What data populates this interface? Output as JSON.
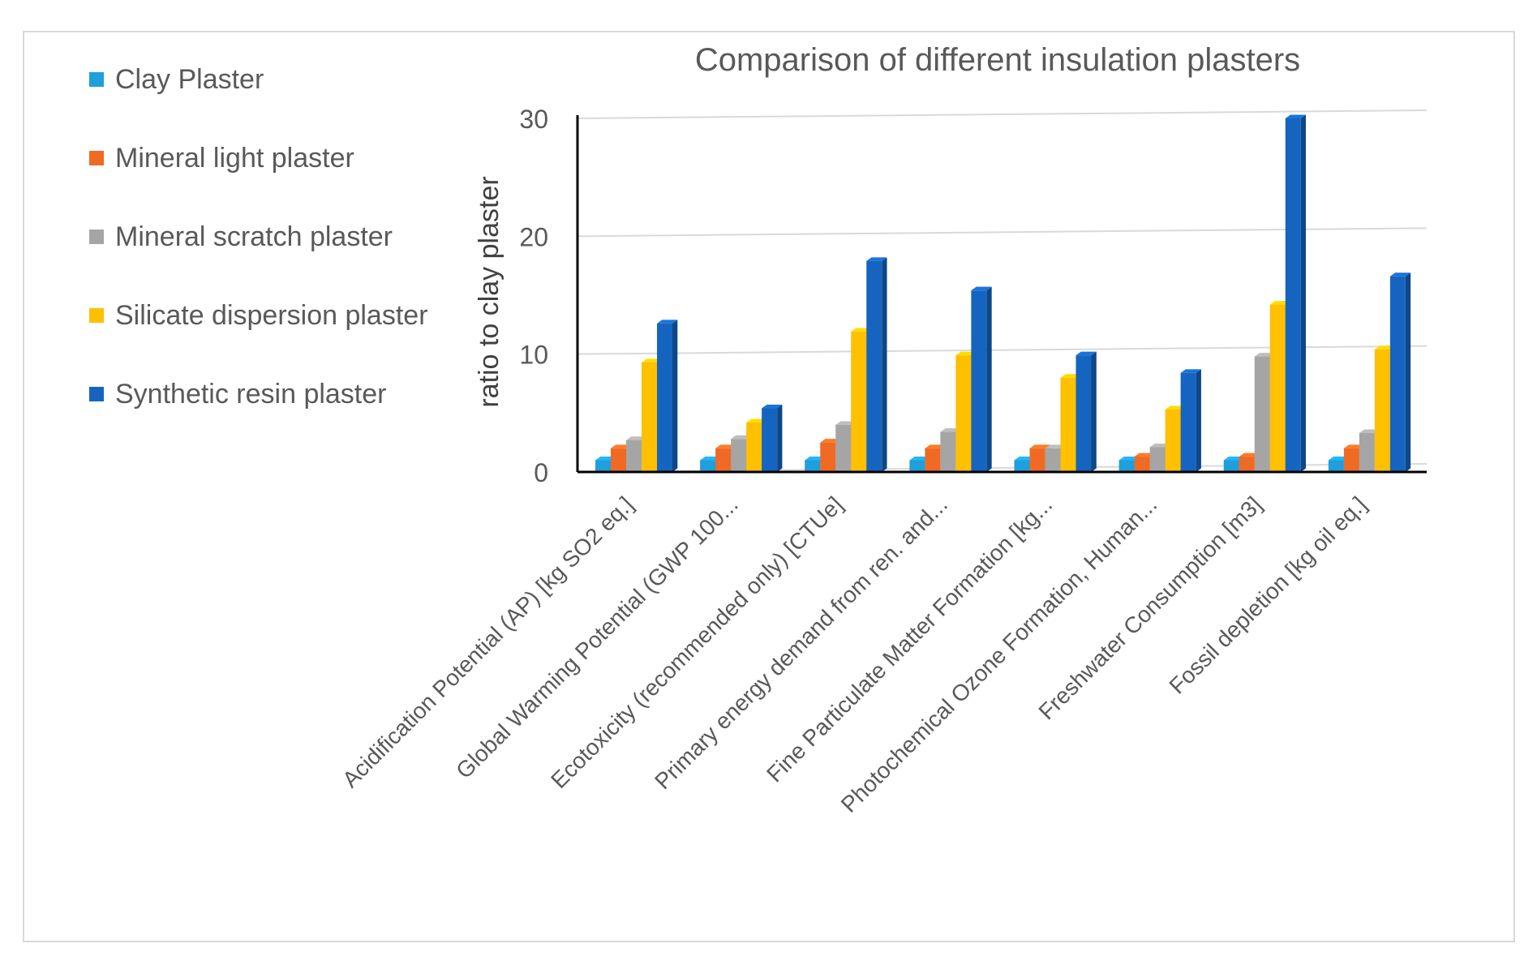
{
  "chart_data": {
    "type": "bar",
    "title": "Comparison of different insulation plasters",
    "xlabel": "",
    "ylabel": "ratio to clay plaster",
    "ylim": [
      0,
      30
    ],
    "yticks": [
      0,
      10,
      20,
      30
    ],
    "grid": true,
    "legend_position": "left",
    "categories": [
      "Acidification Potential (AP) [kg SO2 eq.]",
      "Global Warming Potential (GWP 100...",
      "Ecotoxicity (recommended only) [CTUe]",
      "Primary energy demand from ren. and...",
      "Fine Particulate Matter Formation [kg...",
      "Photochemical Ozone Formation, Human...",
      "Freshwater Consumption [m3]",
      "Fossil depletion [kg oil eq.]"
    ],
    "series": [
      {
        "name": "Clay Plaster",
        "color": "#1f9fdc",
        "values": [
          1,
          1,
          1,
          1,
          1,
          1,
          1,
          1
        ]
      },
      {
        "name": "Mineral light plaster",
        "color": "#f06a23",
        "values": [
          2,
          2,
          2.5,
          2,
          2,
          1.3,
          1.3,
          2
        ]
      },
      {
        "name": "Mineral scratch plaster",
        "color": "#a5a5a5",
        "values": [
          2.7,
          2.8,
          4,
          3.4,
          2,
          2.1,
          9.8,
          3.3
        ]
      },
      {
        "name": "Silicate dispersion plaster",
        "color": "#ffc000",
        "values": [
          9.3,
          4.2,
          11.9,
          9.9,
          8,
          5.3,
          14.2,
          10.4
        ]
      },
      {
        "name": "Synthetic resin plaster",
        "color": "#1565c0",
        "values": [
          12.6,
          5.4,
          17.9,
          15.4,
          9.9,
          8.4,
          30,
          16.6
        ]
      }
    ]
  }
}
